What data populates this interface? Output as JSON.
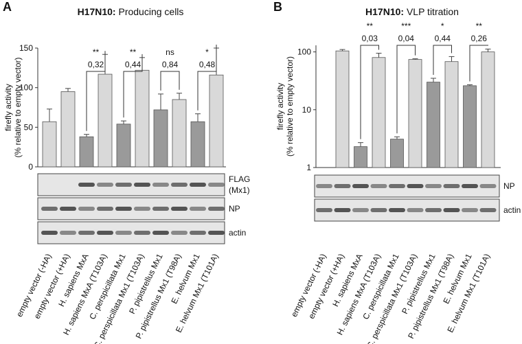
{
  "chart_data": [
    {
      "type": "bar",
      "panel": "A",
      "title_prefix": "H17N10:",
      "title": "Producing cells",
      "y_label": [
        "firefly activity",
        "(% relative to empty vector)"
      ],
      "categories": [
        "empty vector (-HA)",
        "empty vector (+HA)",
        "H. sapiens MxA",
        "H. sapiens MxA (T103A)",
        "C. perspicillata Mx1",
        "C. perspicillata Mx1 (T103A)",
        "P. pipistrellus Mx1",
        "P. pipistrellus Mx1 (T98A)",
        "E. helvum Mx1",
        "E. helvum Mx1 (T101A)"
      ],
      "values": [
        57,
        95,
        38,
        117,
        54,
        122,
        72,
        85,
        57,
        116
      ],
      "errors": [
        16,
        4,
        3,
        25,
        4,
        16,
        20,
        8,
        10,
        34
      ],
      "colors": [
        "#d9d9d9",
        "#d9d9d9",
        "#9a9a9a",
        "#d9d9d9",
        "#9a9a9a",
        "#d9d9d9",
        "#9a9a9a",
        "#d9d9d9",
        "#9a9a9a",
        "#d9d9d9"
      ],
      "ylim": [
        0,
        150
      ],
      "yticks": [
        0,
        50,
        100,
        150
      ],
      "log_scale": false,
      "comparisons": [
        {
          "stars": "**",
          "p": "0,32"
        },
        {
          "stars": "**",
          "p": "0,44"
        },
        {
          "stars": "ns",
          "p": "0,84"
        },
        {
          "stars": "*",
          "p": "0,48"
        }
      ],
      "blots": [
        [
          "FLAG",
          "(Mx1)"
        ],
        [
          "NP"
        ],
        [
          "actin"
        ]
      ]
    },
    {
      "type": "bar",
      "panel": "B",
      "title_prefix": "H17N10:",
      "title": "VLP titration",
      "y_label": [
        "firefly activity",
        "(% relative to empty vector)"
      ],
      "categories": [
        "empty vector (-HA)",
        "empty vector (+HA)",
        "H. sapiens MxA",
        "H. sapiens MxA (T103A)",
        "C. perspicillata Mx1",
        "C. perspicillata Mx1 (T103A)",
        "P. pipistrellus Mx1",
        "P. pipistrellus Mx1 (T98A)",
        "E. helvum Mx1",
        "E. helvum Mx1 (T101A)"
      ],
      "values": [
        null,
        104,
        2.3,
        80,
        3.1,
        74,
        30,
        68,
        26,
        100
      ],
      "errors": [
        null,
        6,
        0.4,
        15,
        0.3,
        2,
        5,
        15,
        1,
        12
      ],
      "colors": [
        "#d9d9d9",
        "#d9d9d9",
        "#9a9a9a",
        "#d9d9d9",
        "#9a9a9a",
        "#d9d9d9",
        "#9a9a9a",
        "#d9d9d9",
        "#9a9a9a",
        "#d9d9d9"
      ],
      "ylim": [
        1,
        130
      ],
      "yticks": [
        1,
        10,
        100
      ],
      "log_scale": true,
      "comparisons": [
        {
          "stars": "**",
          "p": "0,03"
        },
        {
          "stars": "***",
          "p": "0,04"
        },
        {
          "stars": "*",
          "p": "0,44"
        },
        {
          "stars": "**",
          "p": "0,26"
        }
      ],
      "blots": [
        [
          "NP"
        ],
        [
          "actin"
        ]
      ]
    }
  ]
}
